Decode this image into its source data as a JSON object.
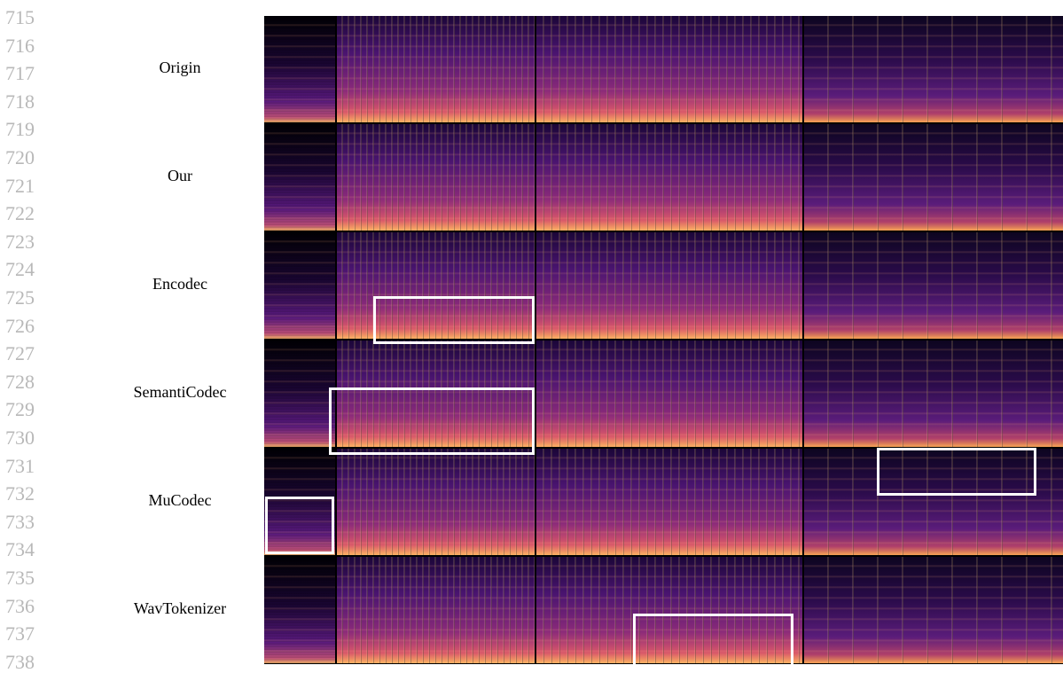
{
  "line_numbers": [
    715,
    716,
    717,
    718,
    719,
    720,
    721,
    722,
    723,
    724,
    725,
    726,
    727,
    728,
    729,
    730,
    731,
    732,
    733,
    734,
    735,
    736,
    737,
    738
  ],
  "figure": {
    "row_labels": [
      "Origin",
      "Our",
      "Encodec",
      "SemantiCodec",
      "MuCodec",
      "WavTokenizer"
    ]
  }
}
